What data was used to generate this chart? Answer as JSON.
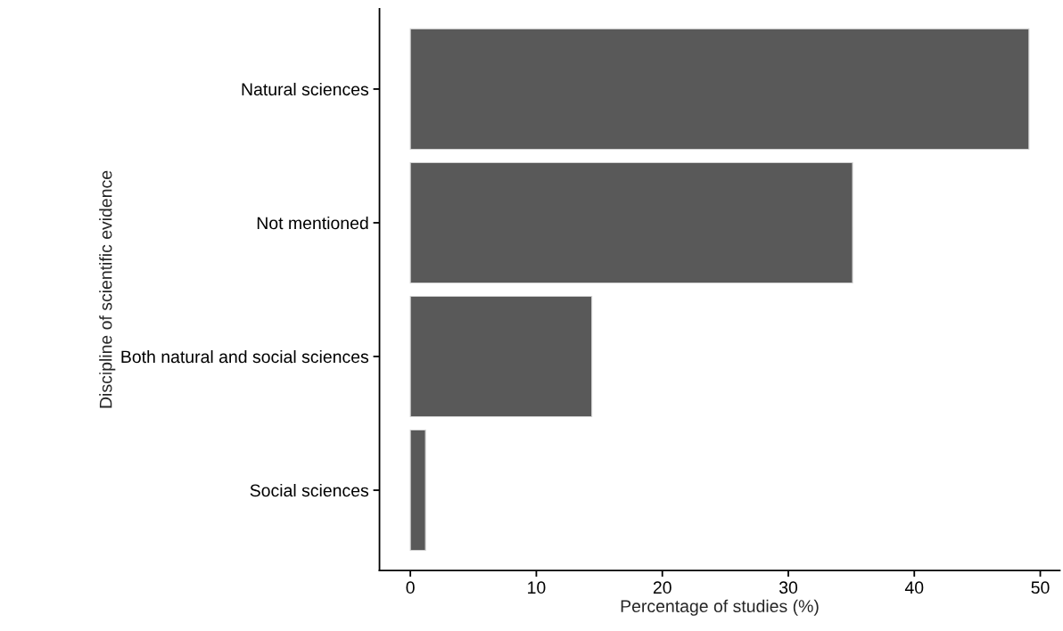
{
  "chart_data": {
    "type": "bar",
    "orientation": "horizontal",
    "categories": [
      "Natural sciences",
      "Not mentioned",
      "Both natural and social sciences",
      "Social sciences"
    ],
    "values": [
      49.1,
      35.1,
      14.4,
      1.2
    ],
    "color": "#595959",
    "xlabel": "Percentage of studies (%)",
    "ylabel": "Discipline of scientific evidence",
    "xlim": [
      -2.45,
      51.55
    ],
    "xticks": [
      0,
      10,
      20,
      30,
      40,
      50
    ],
    "grid": false
  }
}
